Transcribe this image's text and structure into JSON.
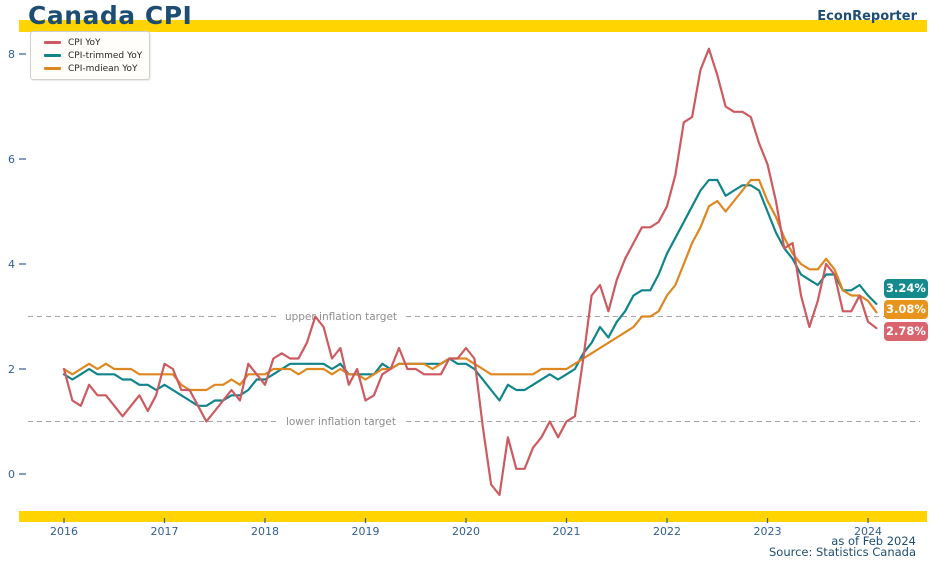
{
  "header": {
    "title": "Canada CPI",
    "brand": "EconReporter"
  },
  "colors": {
    "accent_yellow": "#FFD400",
    "navy": "#1E4D74",
    "axis_label": "#315F93",
    "target_line": "#A3A3A3",
    "target_text": "#8E8E8E"
  },
  "legend": [
    {
      "label": "CPI YoY",
      "color": "#CC5A60"
    },
    {
      "label": "CPI-trimmed YoY",
      "color": "#0F848A"
    },
    {
      "label": "CPI-mdiean YoY",
      "color": "#DE861F"
    }
  ],
  "annotations": {
    "upper": "upper inflation target",
    "lower": "lower inflation target"
  },
  "end_labels": [
    {
      "text": "3.24%",
      "color": "#158A8D"
    },
    {
      "text": "3.08%",
      "color": "#E8941C"
    },
    {
      "text": "2.78%",
      "color": "#D9646E"
    }
  ],
  "footer": {
    "as_of": "as of Feb 2024",
    "source": "Source: Statistics Canada"
  },
  "chart_data": {
    "type": "line",
    "title": "Canada CPI",
    "x_start": "2016-01",
    "x_end": "2024-02",
    "x_frequency": "monthly",
    "x_tick_labels": [
      "2016",
      "2017",
      "2018",
      "2019",
      "2020",
      "2021",
      "2022",
      "2023",
      "2024"
    ],
    "yticks": [
      0,
      2,
      4,
      6,
      8
    ],
    "ylim": [
      -0.6,
      8.5
    ],
    "grid": false,
    "legend_position": "upper-left",
    "target_lines": {
      "upper_inflation_target": 3.0,
      "lower_inflation_target": 1.0
    },
    "latest_values": {
      "cpi_yoy": 2.78,
      "cpi_trimmed_yoy": 3.24,
      "cpi_median_yoy": 3.08
    },
    "draw_order": [
      1,
      2,
      0
    ],
    "series": [
      {
        "name": "CPI YoY",
        "color": "#CC5A60",
        "values": [
          2.0,
          1.4,
          1.3,
          1.7,
          1.5,
          1.5,
          1.3,
          1.1,
          1.3,
          1.5,
          1.2,
          1.5,
          2.1,
          2.0,
          1.6,
          1.6,
          1.3,
          1.0,
          1.2,
          1.4,
          1.6,
          1.4,
          2.1,
          1.9,
          1.7,
          2.2,
          2.3,
          2.2,
          2.2,
          2.5,
          3.0,
          2.8,
          2.2,
          2.4,
          1.7,
          2.0,
          1.4,
          1.5,
          1.9,
          2.0,
          2.4,
          2.0,
          2.0,
          1.9,
          1.9,
          1.9,
          2.2,
          2.2,
          2.4,
          2.2,
          0.9,
          -0.2,
          -0.4,
          0.7,
          0.1,
          0.1,
          0.5,
          0.7,
          1.0,
          0.7,
          1.0,
          1.1,
          2.2,
          3.4,
          3.6,
          3.1,
          3.7,
          4.1,
          4.4,
          4.7,
          4.7,
          4.8,
          5.1,
          5.7,
          6.7,
          6.8,
          7.7,
          8.1,
          7.6,
          7.0,
          6.9,
          6.9,
          6.8,
          6.3,
          5.9,
          5.2,
          4.3,
          4.4,
          3.4,
          2.8,
          3.3,
          4.0,
          3.8,
          3.1,
          3.1,
          3.4,
          2.9,
          2.78
        ]
      },
      {
        "name": "CPI-trimmed YoY",
        "color": "#0F848A",
        "values": [
          1.9,
          1.8,
          1.9,
          2.0,
          1.9,
          1.9,
          1.9,
          1.8,
          1.8,
          1.7,
          1.7,
          1.6,
          1.7,
          1.6,
          1.5,
          1.4,
          1.3,
          1.3,
          1.4,
          1.4,
          1.5,
          1.5,
          1.6,
          1.8,
          1.8,
          1.9,
          2.0,
          2.1,
          2.1,
          2.1,
          2.1,
          2.1,
          2.0,
          2.1,
          1.9,
          1.9,
          1.9,
          1.9,
          2.1,
          2.0,
          2.1,
          2.1,
          2.1,
          2.1,
          2.1,
          2.1,
          2.2,
          2.1,
          2.1,
          2.0,
          1.8,
          1.6,
          1.4,
          1.7,
          1.6,
          1.6,
          1.7,
          1.8,
          1.9,
          1.8,
          1.9,
          2.0,
          2.3,
          2.5,
          2.8,
          2.6,
          2.9,
          3.1,
          3.4,
          3.5,
          3.5,
          3.8,
          4.2,
          4.5,
          4.8,
          5.1,
          5.4,
          5.6,
          5.6,
          5.3,
          5.4,
          5.5,
          5.5,
          5.4,
          5.0,
          4.6,
          4.3,
          4.1,
          3.8,
          3.7,
          3.6,
          3.8,
          3.8,
          3.5,
          3.5,
          3.6,
          3.4,
          3.24
        ]
      },
      {
        "name": "CPI-mdiean YoY",
        "color": "#DE861F",
        "values": [
          2.0,
          1.9,
          2.0,
          2.1,
          2.0,
          2.1,
          2.0,
          2.0,
          2.0,
          1.9,
          1.9,
          1.9,
          1.9,
          1.9,
          1.7,
          1.6,
          1.6,
          1.6,
          1.7,
          1.7,
          1.8,
          1.7,
          1.9,
          1.9,
          1.9,
          2.0,
          2.0,
          2.0,
          1.9,
          2.0,
          2.0,
          2.0,
          1.9,
          2.0,
          1.9,
          1.9,
          1.8,
          1.9,
          2.0,
          2.0,
          2.1,
          2.1,
          2.1,
          2.1,
          2.0,
          2.1,
          2.2,
          2.2,
          2.2,
          2.1,
          2.0,
          1.9,
          1.9,
          1.9,
          1.9,
          1.9,
          1.9,
          2.0,
          2.0,
          2.0,
          2.0,
          2.1,
          2.2,
          2.3,
          2.4,
          2.5,
          2.6,
          2.7,
          2.8,
          3.0,
          3.0,
          3.1,
          3.4,
          3.6,
          4.0,
          4.4,
          4.7,
          5.1,
          5.2,
          5.0,
          5.2,
          5.4,
          5.6,
          5.6,
          5.2,
          4.9,
          4.5,
          4.2,
          4.0,
          3.9,
          3.9,
          4.1,
          3.9,
          3.5,
          3.4,
          3.4,
          3.3,
          3.08
        ]
      }
    ]
  }
}
